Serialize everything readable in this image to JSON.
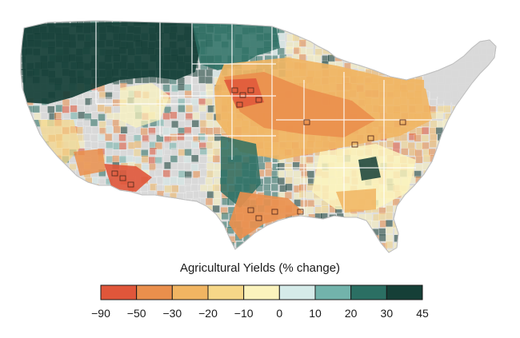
{
  "legend": {
    "title": "Agricultural Yields (% change)",
    "ticks": [
      "−90",
      "−50",
      "−30",
      "−20",
      "−10",
      "0",
      "10",
      "20",
      "30",
      "45"
    ],
    "colors": [
      "#e0563a",
      "#ea8f4c",
      "#f1b562",
      "#f6d788",
      "#fbf3bd",
      "#d5ebe9",
      "#72b3ab",
      "#2b6f63",
      "#153f37"
    ]
  },
  "map": {
    "region": "Contiguous United States (by county)",
    "no_data_color": "#d9d9d9",
    "county_border_color": "#ffffff",
    "highlight_border_color": "#5a2e1f"
  }
}
